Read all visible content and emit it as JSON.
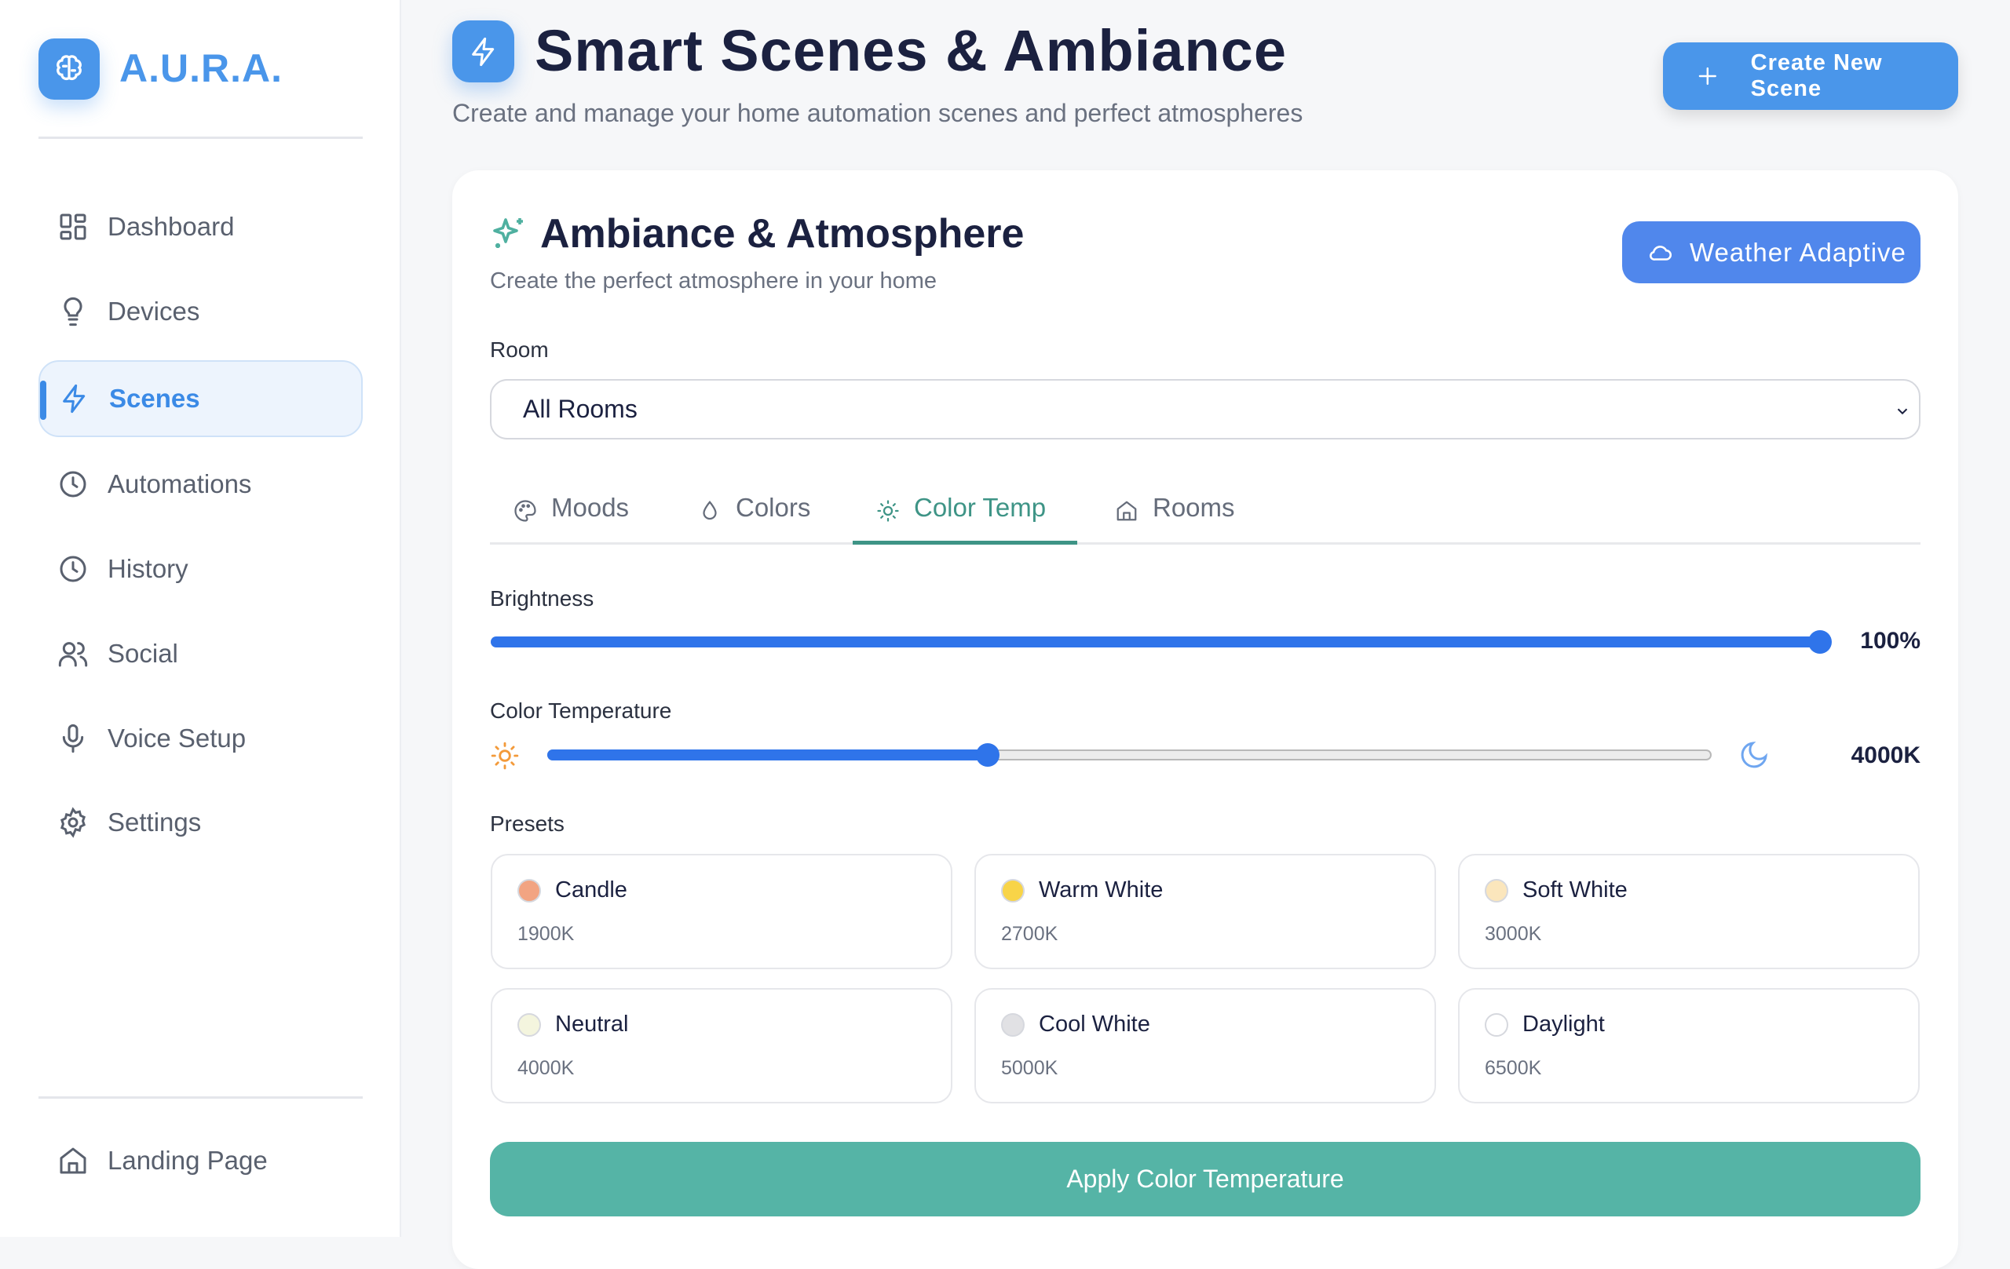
{
  "app": {
    "name": "A.U.R.A.",
    "logo_icon": "brain-icon"
  },
  "sidebar": {
    "items": [
      {
        "label": "Dashboard",
        "icon": "grid-icon"
      },
      {
        "label": "Devices",
        "icon": "lightbulb-icon"
      },
      {
        "label": "Scenes",
        "icon": "zap-icon",
        "active": true
      },
      {
        "label": "Automations",
        "icon": "clock-icon"
      },
      {
        "label": "History",
        "icon": "clock-icon"
      },
      {
        "label": "Social",
        "icon": "users-icon"
      },
      {
        "label": "Voice Setup",
        "icon": "mic-icon"
      },
      {
        "label": "Settings",
        "icon": "gear-icon"
      }
    ],
    "footer": {
      "label": "Landing Page",
      "icon": "home-icon"
    }
  },
  "header": {
    "title": "Smart Scenes & Ambiance",
    "subtitle": "Create and manage your home automation scenes and perfect atmospheres",
    "create_label": "Create New Scene"
  },
  "ambiance": {
    "title": "Ambiance & Atmosphere",
    "subtitle": "Create the perfect atmosphere in your home",
    "weather_label": "Weather Adaptive",
    "room_label": "Room",
    "room_value": "All Rooms",
    "tabs": [
      {
        "label": "Moods",
        "icon": "palette-icon"
      },
      {
        "label": "Colors",
        "icon": "droplet-icon"
      },
      {
        "label": "Color Temp",
        "icon": "sun-icon",
        "active": true
      },
      {
        "label": "Rooms",
        "icon": "home-icon"
      }
    ],
    "brightness": {
      "label": "Brightness",
      "value": "100%",
      "percent": 100
    },
    "color_temp": {
      "label": "Color Temperature",
      "value": "4000K",
      "percent": 37.7
    },
    "presets_label": "Presets",
    "presets": [
      {
        "name": "Candle",
        "kelvin": "1900K",
        "color": "#f2a482"
      },
      {
        "name": "Warm White",
        "kelvin": "2700K",
        "color": "#f8d448"
      },
      {
        "name": "Soft White",
        "kelvin": "3000K",
        "color": "#fbe6bc"
      },
      {
        "name": "Neutral",
        "kelvin": "4000K",
        "color": "#f4f5de"
      },
      {
        "name": "Cool White",
        "kelvin": "5000K",
        "color": "#e1e1e4"
      },
      {
        "name": "Daylight",
        "kelvin": "6500K",
        "color": "#ffffff"
      }
    ],
    "apply_label": "Apply Color Temperature"
  },
  "colors": {
    "accent": "#4a96ea",
    "slider": "#2f74ea",
    "teal": "#3e9486",
    "apply": "#55b4a6"
  }
}
